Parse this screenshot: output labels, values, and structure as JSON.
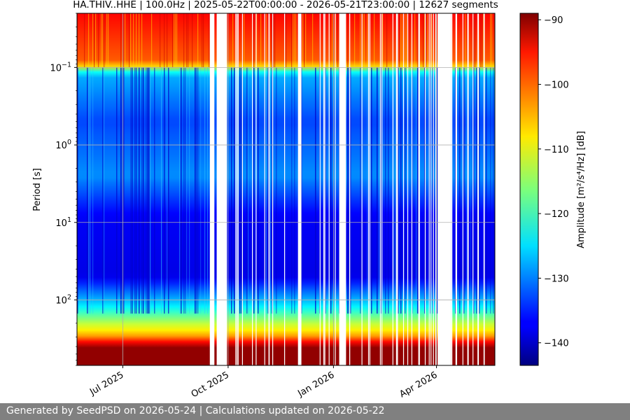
{
  "chart_data": {
    "type": "heatmap",
    "title": "HA.THIV..HHE | 100.0Hz | 2025-05-22T00:00:00 - 2026-05-21T23:00:00 | 12627 segments",
    "ylabel": "Period [s]",
    "xlabel": "",
    "y_scale": "log",
    "y_axis_inverted": true,
    "ylim": [
      0.02,
      700
    ],
    "y_ticks": [
      {
        "value": 0.1,
        "base": "10",
        "exp": "−1"
      },
      {
        "value": 1,
        "base": "10",
        "exp": "0"
      },
      {
        "value": 10,
        "base": "10",
        "exp": "1"
      },
      {
        "value": 100,
        "base": "10",
        "exp": "2"
      }
    ],
    "x_start": "2025-05-22",
    "x_end": "2026-05-22",
    "x_ticks": [
      {
        "date": "2025-07-01",
        "label": "Jul 2025"
      },
      {
        "date": "2025-10-01",
        "label": "Oct 2025"
      },
      {
        "date": "2026-01-01",
        "label": "Jan 2026"
      },
      {
        "date": "2026-04-01",
        "label": "Apr 2026"
      }
    ],
    "grid": true,
    "colormap": "jet",
    "colorbar": {
      "label": "Amplitude [m²/s⁴/Hz] [dB]",
      "range": [
        -143.5,
        -89
      ],
      "ticks": [
        -90,
        -100,
        -110,
        -120,
        -130,
        -140
      ]
    },
    "data_gaps": [
      [
        "2025-09-15",
        "2025-09-19"
      ],
      [
        "2025-09-21",
        "2025-09-30"
      ],
      [
        "2025-12-01",
        "2025-12-04"
      ],
      [
        "2026-01-06",
        "2026-01-12"
      ],
      [
        "2026-03-31",
        "2026-04-01"
      ],
      [
        "2026-04-02",
        "2026-04-14"
      ]
    ],
    "amplitude_profile_db": [
      {
        "period": 0.02,
        "db": -96
      },
      {
        "period": 0.09,
        "db": -101
      },
      {
        "period": 0.12,
        "db": -127
      },
      {
        "period": 0.5,
        "db": -133
      },
      {
        "period": 2.5,
        "db": -129
      },
      {
        "period": 8,
        "db": -137
      },
      {
        "period": 50,
        "db": -138
      },
      {
        "period": 120,
        "db": -124
      },
      {
        "period": 200,
        "db": -113
      },
      {
        "period": 280,
        "db": -106
      },
      {
        "period": 400,
        "db": -90
      }
    ]
  },
  "footer": {
    "text": "Generated by SeedPSD on 2026-05-24 | Calculations updated on 2026-05-22"
  }
}
